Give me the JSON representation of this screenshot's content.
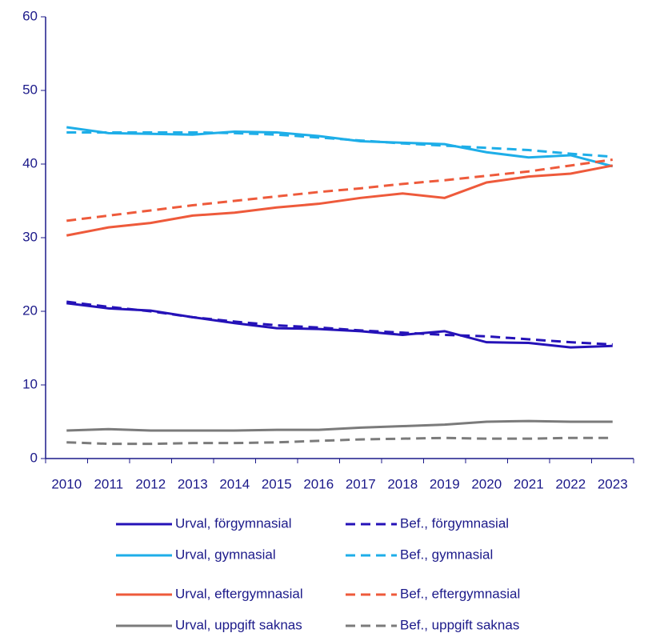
{
  "chart_data": {
    "type": "line",
    "categories": [
      "2010",
      "2011",
      "2012",
      "2013",
      "2014",
      "2015",
      "2016",
      "2017",
      "2018",
      "2019",
      "2020",
      "2021",
      "2022",
      "2023"
    ],
    "ylim": [
      0,
      60
    ],
    "yticks": [
      0,
      10,
      20,
      30,
      40,
      50,
      60
    ],
    "series": [
      {
        "name": "Urval, förgymnasial",
        "color": "#2512b8",
        "dashed": false,
        "values": [
          21.1,
          20.4,
          20.1,
          19.2,
          18.4,
          17.7,
          17.6,
          17.3,
          16.8,
          17.3,
          15.8,
          15.7,
          15.1,
          15.3
        ]
      },
      {
        "name": "Bef., förgymnasial",
        "color": "#2512b8",
        "dashed": true,
        "values": [
          21.3,
          20.6,
          20.0,
          19.2,
          18.6,
          18.1,
          17.8,
          17.4,
          17.1,
          16.8,
          16.6,
          16.2,
          15.8,
          15.5
        ]
      },
      {
        "name": "Urval, gymnasial",
        "color": "#1eaee8",
        "dashed": false,
        "values": [
          45.0,
          44.2,
          44.1,
          44.0,
          44.4,
          44.3,
          43.8,
          43.1,
          42.9,
          42.7,
          41.6,
          40.9,
          41.2,
          39.7
        ]
      },
      {
        "name": "Bef., gymnasial",
        "color": "#1eaee8",
        "dashed": true,
        "values": [
          44.3,
          44.3,
          44.3,
          44.3,
          44.2,
          44.0,
          43.6,
          43.2,
          42.8,
          42.5,
          42.2,
          41.9,
          41.4,
          41.0
        ]
      },
      {
        "name": "Urval, eftergymnasial",
        "color": "#ee5a3b",
        "dashed": false,
        "values": [
          30.3,
          31.4,
          32.0,
          33.0,
          33.4,
          34.1,
          34.6,
          35.4,
          36.0,
          35.4,
          37.5,
          38.3,
          38.7,
          39.8
        ]
      },
      {
        "name": "Bef., eftergymnasial",
        "color": "#ee5a3b",
        "dashed": true,
        "values": [
          32.3,
          33.0,
          33.7,
          34.4,
          35.0,
          35.6,
          36.2,
          36.7,
          37.3,
          37.8,
          38.4,
          39.0,
          39.8,
          40.6
        ]
      },
      {
        "name": "Urval, uppgift saknas",
        "color": "#7b7b7b",
        "dashed": false,
        "values": [
          3.8,
          4.0,
          3.8,
          3.8,
          3.8,
          3.9,
          3.9,
          4.2,
          4.4,
          4.6,
          5.0,
          5.1,
          5.0,
          5.0
        ]
      },
      {
        "name": "Bef., uppgift saknas",
        "color": "#7b7b7b",
        "dashed": true,
        "values": [
          2.2,
          2.0,
          2.0,
          2.1,
          2.1,
          2.2,
          2.4,
          2.6,
          2.7,
          2.8,
          2.7,
          2.7,
          2.8,
          2.8
        ]
      }
    ]
  }
}
